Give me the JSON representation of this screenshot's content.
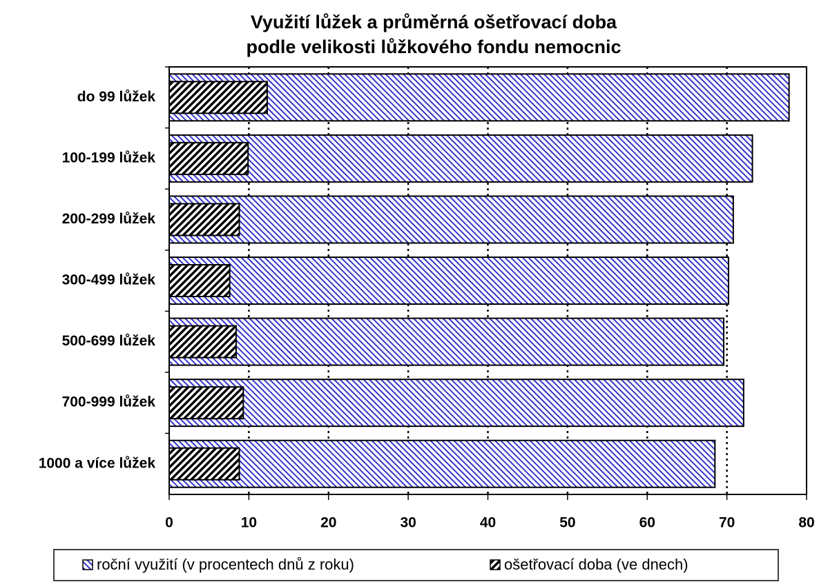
{
  "chart_data": {
    "type": "bar",
    "orientation": "horizontal",
    "title": [
      "Využití lůžek a průměrná ošetřovací doba",
      "podle velikosti lůžkového fondu nemocnic"
    ],
    "categories": [
      "do 99 lůžek",
      "100-199 lůžek",
      "200-299 lůžek",
      "300-499 lůžek",
      "500-699 lůžek",
      "700-999 lůžek",
      "1000 a více lůžek"
    ],
    "series": [
      {
        "name": "roční využití (v procentech dnů z roku)",
        "color": "#3333cc",
        "values": [
          77.8,
          73.2,
          70.8,
          70.2,
          69.6,
          72.1,
          68.5
        ]
      },
      {
        "name": "ošetřovací doba (ve dnech)",
        "color": "#000000",
        "values": [
          12.3,
          9.9,
          8.8,
          7.6,
          8.4,
          9.3,
          8.8
        ]
      }
    ],
    "xlim": [
      0,
      80
    ],
    "xticks": [
      0,
      10,
      20,
      30,
      40,
      50,
      60,
      70,
      80
    ],
    "grid": true,
    "legend": "bottom"
  }
}
